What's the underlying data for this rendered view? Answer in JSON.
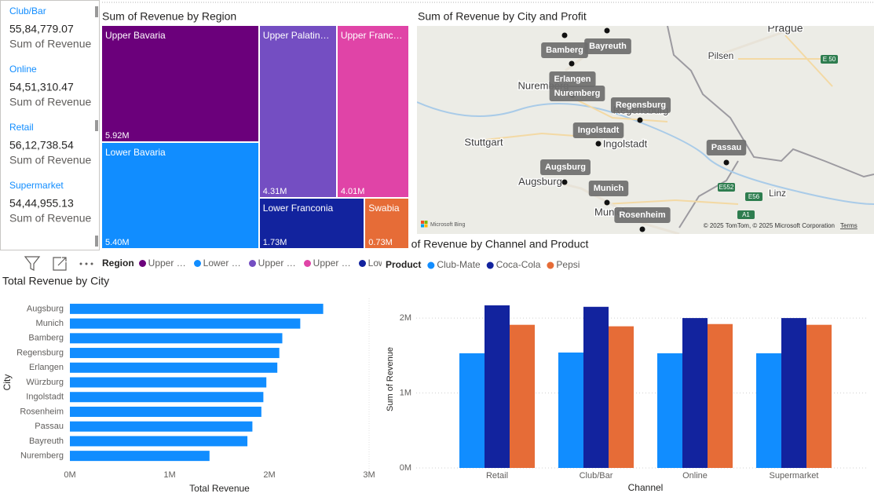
{
  "cards": [
    {
      "label": "Club/Bar",
      "value": "55,84,779.07",
      "caption": "Sum of Revenue"
    },
    {
      "label": "Online",
      "value": "54,51,310.47",
      "caption": "Sum of Revenue"
    },
    {
      "label": "Retail",
      "value": "56,12,738.54",
      "caption": "Sum of Revenue"
    },
    {
      "label": "Supermarket",
      "value": "54,44,955.13",
      "caption": "Sum of Revenue"
    }
  ],
  "map": {
    "title": "Sum of Revenue by City and Profit",
    "cities": [
      "Bamberg",
      "Bayreuth",
      "Erlangen",
      "Nuremberg",
      "Regensburg",
      "Ingolstadt",
      "Passau",
      "Augsburg",
      "Munich",
      "Rosenheim"
    ],
    "places": [
      "Prague",
      "Pilsen",
      "Nuremberg",
      "Regensburg",
      "Stuttgart",
      "Ingolstadt",
      "Augsburg",
      "Munich",
      "Linz"
    ],
    "roads": [
      "E 50",
      "E552",
      "E56",
      "A1"
    ],
    "logo": "Microsoft Bing",
    "attribution": "© 2025 TomTom, © 2025 Microsoft Corporation",
    "terms": "Terms"
  },
  "chart_data": [
    {
      "type": "treemap",
      "title": "Sum of Revenue by Region",
      "legend_title": "Region",
      "categories": [
        "Upper Bavaria",
        "Lower Bavaria",
        "Upper Palatinate",
        "Upper Franconia",
        "Lower Franconia",
        "Swabia"
      ],
      "values": [
        5920000,
        5400000,
        4310000,
        4010000,
        1730000,
        730000
      ],
      "value_labels": [
        "5.92M",
        "5.40M",
        "4.31M",
        "4.01M",
        "1.73M",
        "0.73M"
      ],
      "colors": [
        "#6B007B",
        "#118DFF",
        "#744EC2",
        "#E044A7",
        "#12239E",
        "#E66C37"
      ]
    },
    {
      "type": "hbar",
      "title": "Total Revenue by City",
      "xlabel": "Total Revenue",
      "ylabel": "City",
      "categories": [
        "Augsburg",
        "Munich",
        "Bamberg",
        "Regensburg",
        "Erlangen",
        "Würzburg",
        "Ingolstadt",
        "Rosenheim",
        "Passau",
        "Bayreuth",
        "Nuremberg"
      ],
      "values": [
        2540000,
        2310000,
        2130000,
        2100000,
        2080000,
        1970000,
        1940000,
        1920000,
        1830000,
        1780000,
        1400000
      ],
      "color": "#118DFF",
      "xlim": [
        0,
        3000000
      ],
      "xticks": [
        {
          "value": 0,
          "label": "0M"
        },
        {
          "value": 1000000,
          "label": "1M"
        },
        {
          "value": 2000000,
          "label": "2M"
        },
        {
          "value": 3000000,
          "label": "3M"
        }
      ]
    },
    {
      "type": "bar",
      "title": "Sum of Revenue by Channel and Product",
      "xlabel": "Channel",
      "ylabel": "Sum of Revenue",
      "legend_title": "Product",
      "categories": [
        "Retail",
        "Club/Bar",
        "Online",
        "Supermarket"
      ],
      "series": [
        {
          "name": "Club-Mate",
          "color": "#118DFF",
          "values": [
            1530000,
            1540000,
            1530000,
            1530000
          ]
        },
        {
          "name": "Coca-Cola",
          "color": "#12239E",
          "values": [
            2170000,
            2150000,
            2000000,
            2000000
          ]
        },
        {
          "name": "Pepsi",
          "color": "#E66C37",
          "values": [
            1910000,
            1890000,
            1920000,
            1910000
          ]
        }
      ],
      "ylim": [
        0,
        2200000
      ],
      "yticks": [
        {
          "value": 0,
          "label": "0M"
        },
        {
          "value": 1000000,
          "label": "1M"
        },
        {
          "value": 2000000,
          "label": "2M"
        }
      ],
      "grid": true
    }
  ]
}
